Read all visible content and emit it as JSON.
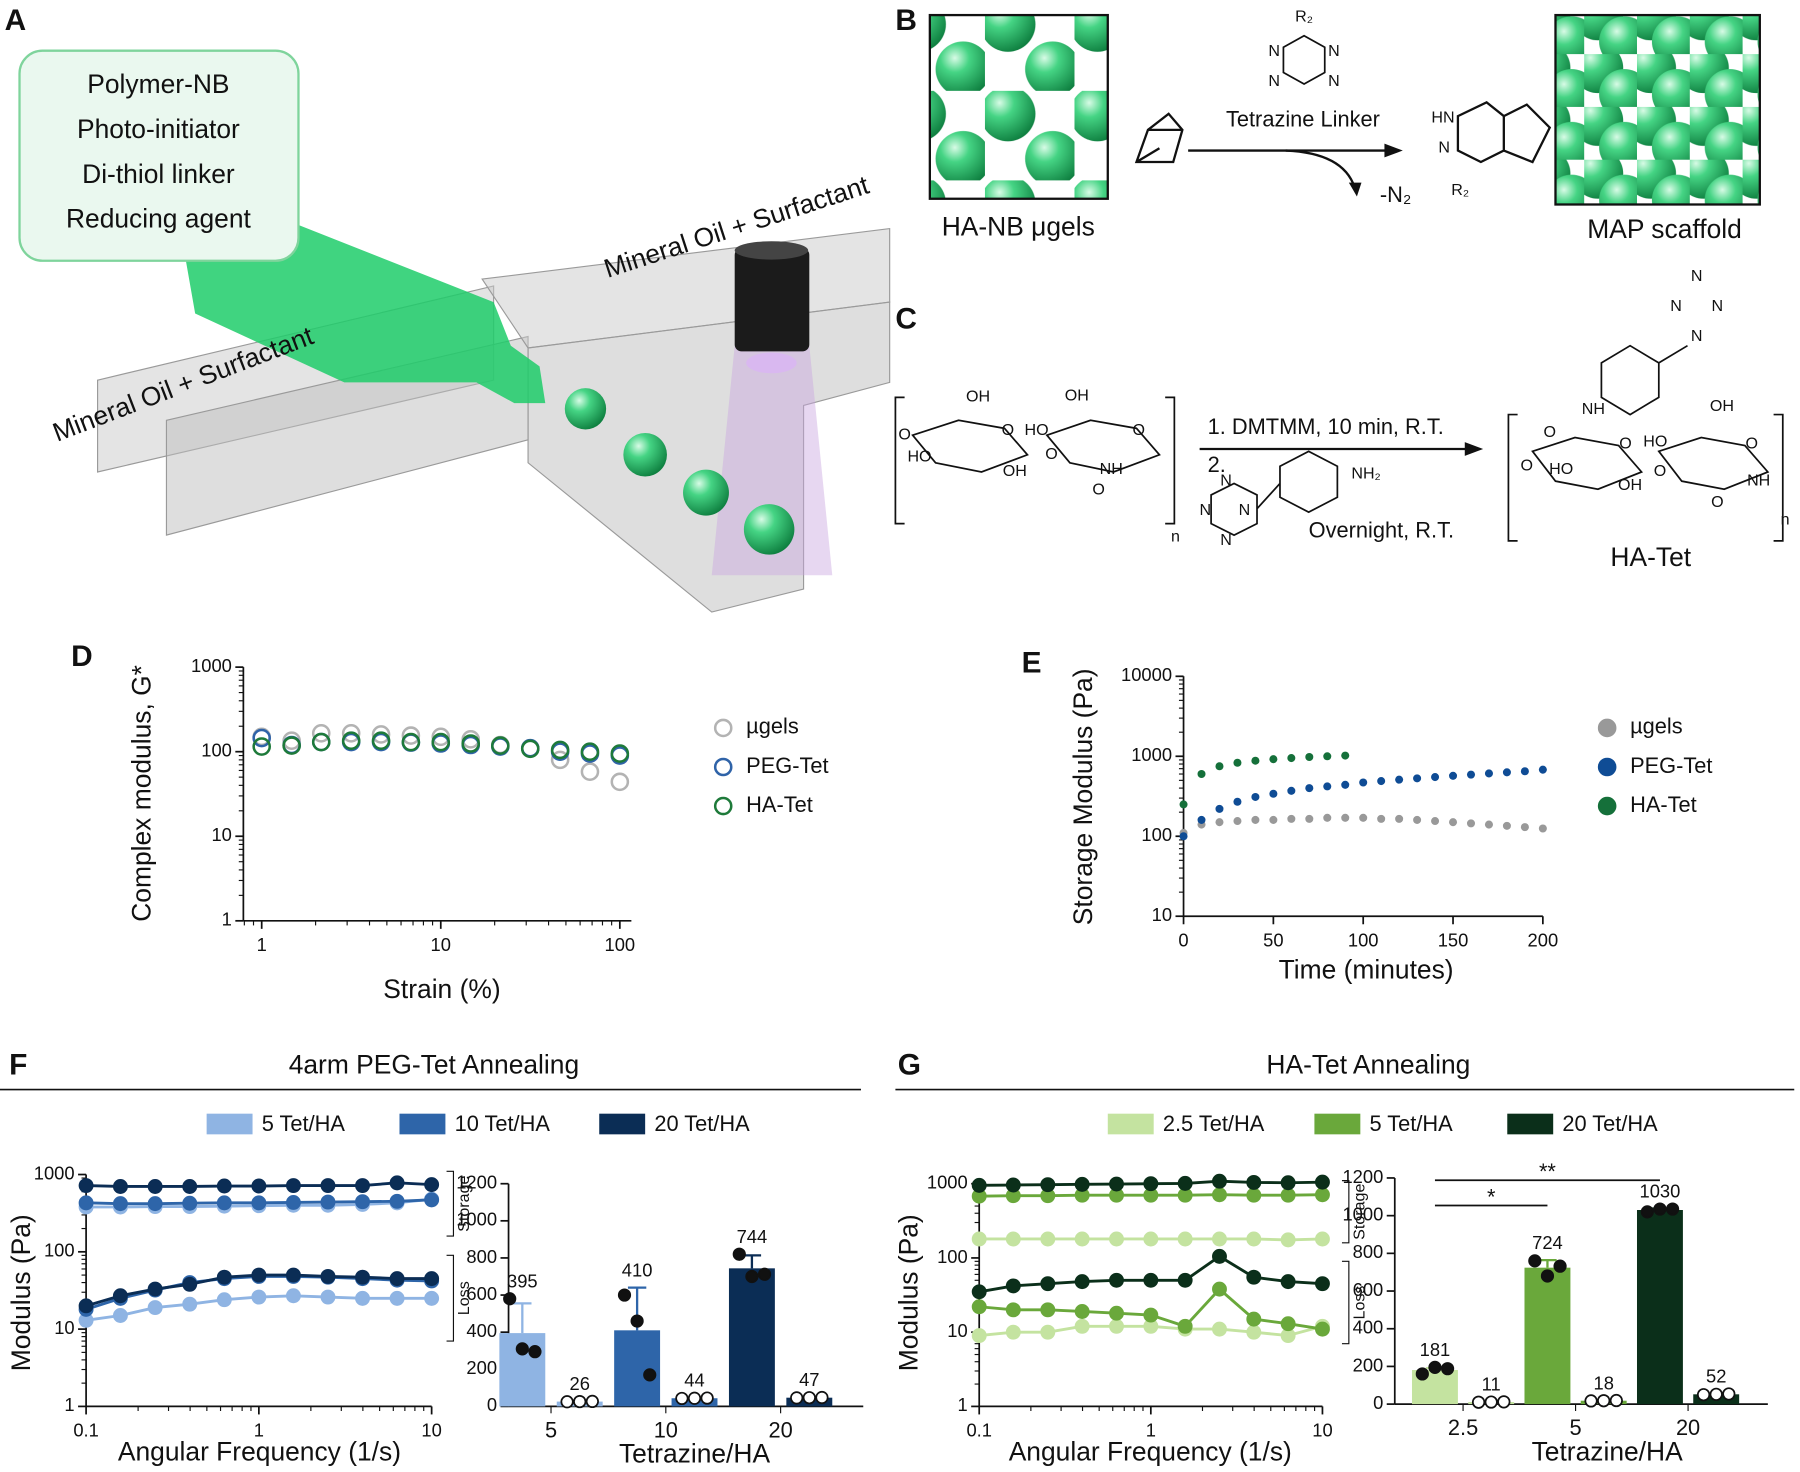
{
  "panel_labels": {
    "a": "A",
    "b": "B",
    "c": "C",
    "d": "D",
    "e": "E",
    "f": "F",
    "g": "G"
  },
  "panel_a": {
    "box_lines": [
      "Polymer-NB",
      "Photo-initiator",
      "Di-thiol linker",
      "Reducing agent"
    ],
    "oil_left": "Mineral Oil + Surfactant",
    "oil_right": "Mineral Oil + Surfactant"
  },
  "panel_b": {
    "left_label": "HA-NB μgels",
    "right_label": "MAP scaffold",
    "reagent": "Tetrazine Linker",
    "byproduct": "-N₂",
    "reagent_atoms": [
      "R₂",
      "N",
      "N",
      "N",
      "N"
    ],
    "product_atoms": [
      "HN",
      "N",
      "R₂"
    ]
  },
  "panel_c": {
    "step_1": "1. DMTMM, 10 min, R.T.",
    "step_2": "2.",
    "step_2_conditions": "Overnight, R.T.",
    "product": "HA-Tet",
    "reactant_atoms": [
      "O",
      "OH",
      "HO",
      "O",
      "OH",
      "O",
      "OH",
      "HO",
      "O",
      "NH",
      "O",
      "n"
    ],
    "amine_atoms": [
      "N",
      "N",
      "N",
      "N",
      "NH₂"
    ],
    "product_atoms": [
      "N",
      "N",
      "N",
      "N",
      "NH",
      "O",
      "O",
      "HO",
      "O",
      "OH",
      "O",
      "OH",
      "HO",
      "O",
      "NH",
      "O",
      "n"
    ]
  },
  "chart_data": [
    {
      "type": "scatter",
      "marker": "open",
      "ylabel": "Complex modulus, G*",
      "xlabel": "Strain (%)",
      "xscale": "log",
      "yscale": "log",
      "xlim": [
        0.79,
        116
      ],
      "ylim": [
        1,
        1000
      ],
      "xticks": [
        1,
        10,
        100
      ],
      "yticks": [
        1,
        10,
        100,
        1000
      ],
      "legend": "right",
      "x": [
        1,
        1.47,
        2.15,
        3.16,
        4.64,
        6.81,
        10,
        14.7,
        21.5,
        31.6,
        46.4,
        68.1,
        100
      ],
      "series": [
        {
          "name": "µgels",
          "color": "#b3b3b3",
          "values": [
            150,
            135,
            165,
            165,
            160,
            155,
            150,
            140,
            120,
            110,
            80,
            58,
            44
          ]
        },
        {
          "name": "PEG-Tet",
          "color": "#2f63a8",
          "values": [
            145,
            120,
            130,
            130,
            130,
            128,
            125,
            120,
            115,
            110,
            100,
            95,
            90
          ]
        },
        {
          "name": "HA-Tet",
          "color": "#1e7a3a",
          "values": [
            115,
            118,
            130,
            135,
            135,
            130,
            130,
            125,
            118,
            108,
            105,
            100,
            95
          ]
        }
      ]
    },
    {
      "type": "scatter",
      "marker": "filled",
      "ylabel": "Storage Modulus (Pa)",
      "xlabel": "Time (minutes)",
      "xscale": "linear",
      "yscale": "log",
      "xlim": [
        0,
        200
      ],
      "ylim": [
        10,
        10000
      ],
      "xticks": [
        0,
        50,
        100,
        150,
        200
      ],
      "yticks": [
        10,
        100,
        1000,
        10000
      ],
      "legend": "right",
      "series": [
        {
          "name": "µgels",
          "color": "#999999",
          "x": [
            0,
            10,
            20,
            30,
            40,
            50,
            60,
            70,
            80,
            90,
            100,
            110,
            120,
            130,
            140,
            150,
            160,
            170,
            180,
            190,
            200
          ],
          "values": [
            110,
            140,
            150,
            155,
            160,
            160,
            165,
            165,
            170,
            170,
            170,
            165,
            165,
            160,
            155,
            150,
            145,
            140,
            135,
            130,
            125
          ]
        },
        {
          "name": "PEG-Tet",
          "color": "#0f4c95",
          "x": [
            0,
            10,
            20,
            30,
            40,
            50,
            60,
            70,
            80,
            90,
            100,
            110,
            120,
            130,
            140,
            150,
            160,
            170,
            180,
            190,
            200
          ],
          "values": [
            100,
            160,
            220,
            270,
            310,
            340,
            370,
            400,
            420,
            440,
            470,
            490,
            510,
            530,
            550,
            570,
            590,
            610,
            630,
            650,
            680
          ]
        },
        {
          "name": "HA-Tet",
          "color": "#15703a",
          "x": [
            0,
            10,
            20,
            30,
            40,
            50,
            60,
            70,
            80,
            90
          ],
          "values": [
            250,
            600,
            750,
            830,
            880,
            920,
            950,
            980,
            1000,
            1020
          ]
        }
      ]
    },
    {
      "type": "line",
      "title": "4arm PEG-Tet Annealing",
      "ylabel": "Modulus (Pa)",
      "xlabel": "Angular Frequency (1/s)",
      "xscale": "log",
      "yscale": "log",
      "xlim": [
        0.1,
        10
      ],
      "ylim": [
        1,
        1000
      ],
      "xticks": [
        0.1,
        1,
        10
      ],
      "yticks": [
        1,
        10,
        100,
        1000
      ],
      "legend": "top",
      "annotations": {
        "storage": "Storage",
        "loss": "Loss"
      },
      "x": [
        0.1,
        0.158,
        0.251,
        0.398,
        0.631,
        1,
        1.585,
        2.512,
        3.981,
        6.31,
        10
      ],
      "series": [
        {
          "name": "5 Tet/HA",
          "color": "#8fb4e3",
          "storage": [
            380,
            380,
            385,
            385,
            390,
            395,
            400,
            400,
            410,
            430,
            480
          ],
          "loss": [
            13,
            15,
            19,
            21,
            24,
            26,
            27,
            26,
            25,
            25,
            25
          ]
        },
        {
          "name": "10 Tet/HA",
          "color": "#2e65a9",
          "storage": [
            430,
            420,
            420,
            425,
            430,
            430,
            435,
            440,
            445,
            450,
            470
          ],
          "loss": [
            18,
            25,
            32,
            40,
            45,
            48,
            48,
            47,
            45,
            43,
            42
          ]
        },
        {
          "name": "20 Tet/HA",
          "color": "#0b2d55",
          "storage": [
            720,
            700,
            700,
            700,
            710,
            710,
            720,
            720,
            720,
            780,
            740
          ],
          "loss": [
            20,
            27,
            33,
            38,
            47,
            50,
            50,
            48,
            47,
            45,
            45
          ]
        }
      ]
    },
    {
      "type": "bar",
      "xlabel": "Tetrazine/HA",
      "categories": [
        "5",
        "10",
        "20"
      ],
      "ylim": [
        0,
        1200
      ],
      "yticks": [
        0,
        200,
        400,
        600,
        800,
        1000,
        1200
      ],
      "colors": [
        "#8fb4e3",
        "#2e65a9",
        "#0b2d55"
      ],
      "storage": [
        395,
        410,
        744
      ],
      "storage_errors": [
        160,
        230,
        70
      ],
      "loss": [
        26,
        44,
        47
      ],
      "loss_errors": [
        2,
        2,
        2
      ],
      "storage_points": [
        [
          580,
          310,
          295
        ],
        [
          600,
          460,
          170
        ],
        [
          820,
          700,
          712
        ]
      ],
      "loss_points": [
        [
          25,
          26,
          27
        ],
        [
          43,
          44,
          45
        ],
        [
          46,
          47,
          48
        ]
      ]
    },
    {
      "type": "line",
      "title": "HA-Tet Annealing",
      "ylabel": "Modulus (Pa)",
      "xlabel": "Angular Frequency (1/s)",
      "xscale": "log",
      "yscale": "log",
      "xlim": [
        0.1,
        10
      ],
      "ylim": [
        1,
        1000
      ],
      "xticks": [
        0.1,
        1,
        10
      ],
      "yticks": [
        1,
        10,
        100,
        1000
      ],
      "legend": "top",
      "annotations": {
        "storage": "Storage",
        "loss": "Loss"
      },
      "x": [
        0.1,
        0.158,
        0.251,
        0.398,
        0.631,
        1,
        1.585,
        2.512,
        3.981,
        6.31,
        10
      ],
      "series": [
        {
          "name": "2.5 Tet/HA",
          "color": "#c4e3a0",
          "storage": [
            180,
            180,
            180,
            180,
            180,
            180,
            180,
            180,
            180,
            175,
            180
          ],
          "loss": [
            9,
            10,
            10,
            12,
            12,
            12,
            11,
            11,
            10,
            9,
            12
          ]
        },
        {
          "name": "5 Tet/HA",
          "color": "#6aa83b",
          "storage": [
            680,
            690,
            690,
            700,
            700,
            700,
            700,
            710,
            700,
            700,
            710
          ],
          "loss": [
            22,
            20,
            20,
            19,
            18,
            17,
            12,
            38,
            15,
            13,
            11
          ]
        },
        {
          "name": "20 Tet/HA",
          "color": "#0b2f1a",
          "storage": [
            950,
            960,
            970,
            980,
            990,
            1000,
            1010,
            1080,
            1040,
            1030,
            1050
          ],
          "loss": [
            35,
            42,
            45,
            48,
            50,
            50,
            50,
            105,
            55,
            48,
            45
          ]
        }
      ]
    },
    {
      "type": "bar",
      "xlabel": "Tetrazine/HA",
      "categories": [
        "2.5",
        "5",
        "20"
      ],
      "ylim": [
        0,
        1200
      ],
      "yticks": [
        0,
        200,
        400,
        600,
        800,
        1000,
        1200
      ],
      "colors": [
        "#c4e3a0",
        "#6aa83b",
        "#0b2f1a"
      ],
      "storage": [
        181,
        724,
        1030
      ],
      "storage_errors": [
        10,
        40,
        8
      ],
      "loss": [
        11,
        18,
        52
      ],
      "loss_errors": [
        1,
        1,
        2
      ],
      "storage_points": [
        [
          160,
          195,
          188
        ],
        [
          760,
          680,
          732
        ],
        [
          1020,
          1035,
          1035
        ]
      ],
      "loss_points": [
        [
          10,
          11,
          12
        ],
        [
          17,
          18,
          19
        ],
        [
          50,
          52,
          54
        ]
      ],
      "significance": [
        "*",
        "**"
      ]
    }
  ]
}
